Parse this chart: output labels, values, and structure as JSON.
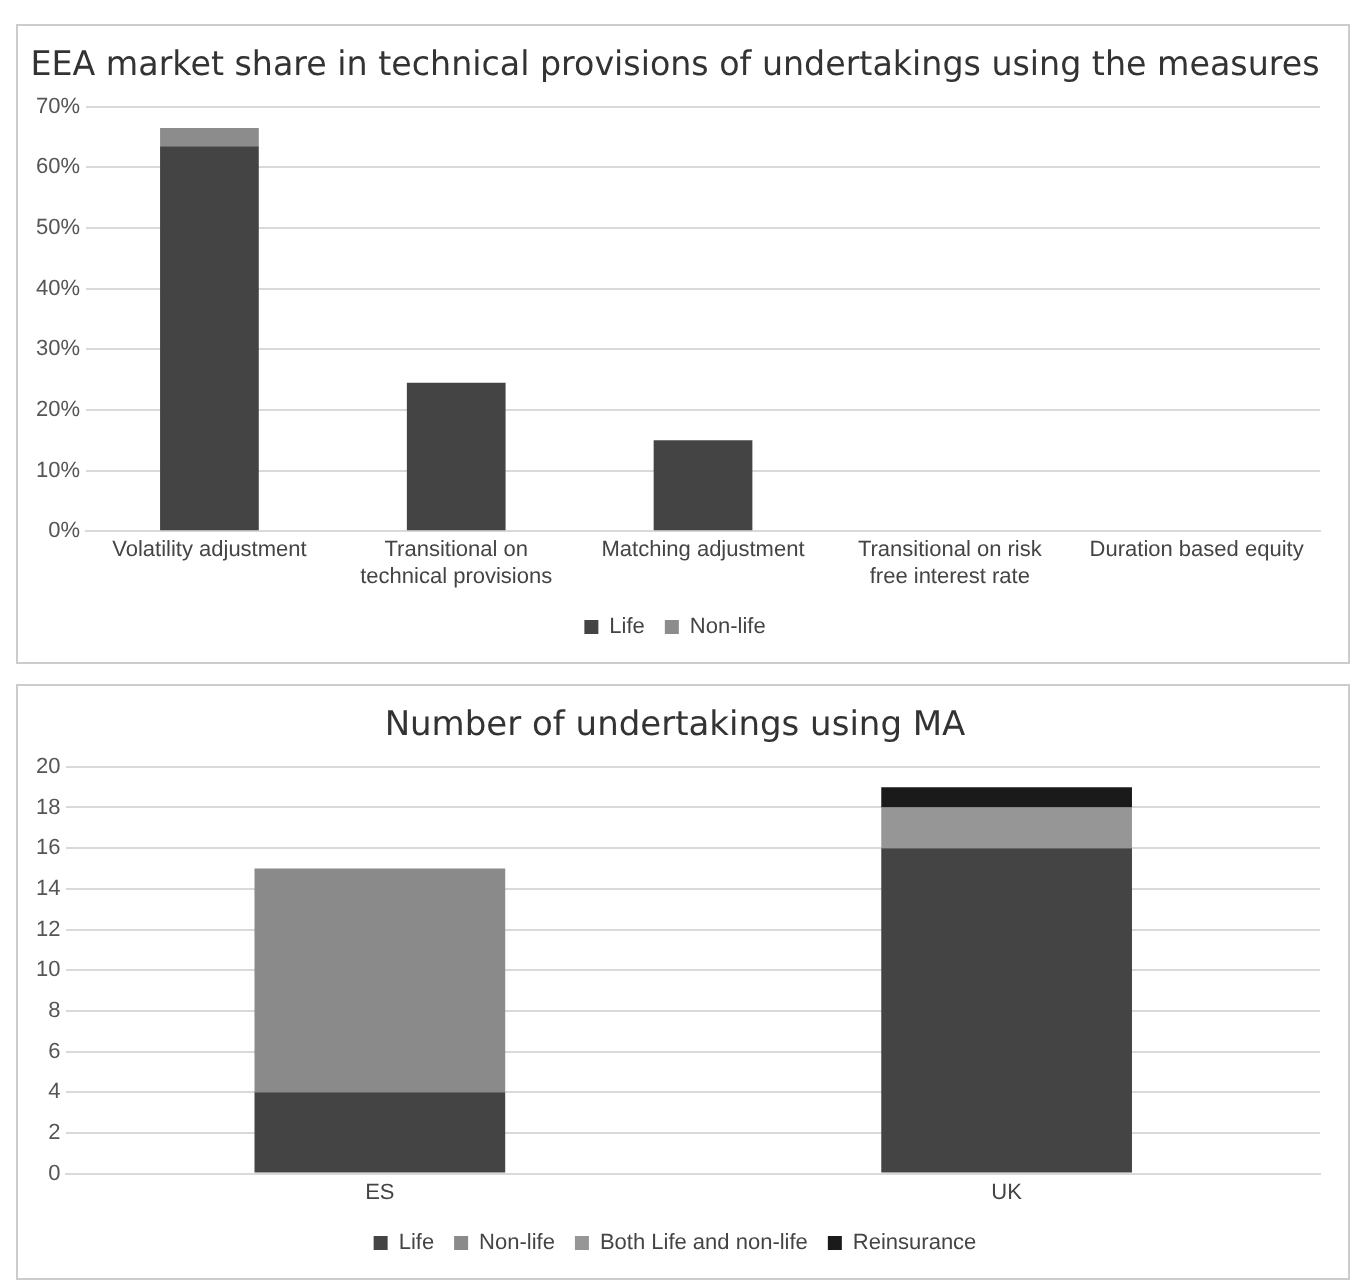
{
  "chart_data": [
    {
      "type": "bar",
      "title": "EEA market share in technical provisions of undertakings using the measures",
      "categories": [
        "Volatility adjustment",
        "Transitional on technical provisions",
        "Matching adjustment",
        "Transitional on risk free interest rate",
        "Duration based equity"
      ],
      "stacked": true,
      "series": [
        {
          "name": "Life",
          "color": "#444444",
          "values": [
            63.5,
            24.5,
            15,
            0,
            0
          ]
        },
        {
          "name": "Non-life",
          "color": "#8c8c8c",
          "values": [
            3,
            0,
            0,
            0,
            0
          ]
        }
      ],
      "ylim": [
        0,
        70
      ],
      "yticks": [
        {
          "value": 0,
          "label": "0%"
        },
        {
          "value": 10,
          "label": "10%"
        },
        {
          "value": 20,
          "label": "20%"
        },
        {
          "value": 30,
          "label": "30%"
        },
        {
          "value": 40,
          "label": "40%"
        },
        {
          "value": 50,
          "label": "50%"
        },
        {
          "value": 60,
          "label": "60%"
        },
        {
          "value": 70,
          "label": "70%"
        }
      ],
      "grid": "y",
      "legend": "bottom"
    },
    {
      "type": "bar",
      "title": "Number of undertakings using MA",
      "categories": [
        "ES",
        "UK"
      ],
      "stacked": true,
      "series": [
        {
          "name": "Life",
          "color": "#444444",
          "values": [
            4,
            16
          ]
        },
        {
          "name": "Non-life",
          "color": "#8a8a8a",
          "values": [
            11,
            0
          ]
        },
        {
          "name": "Both Life and non-life",
          "color": "#969696",
          "values": [
            0,
            2
          ]
        },
        {
          "name": "Reinsurance",
          "color": "#1a1a1a",
          "values": [
            0,
            1
          ]
        }
      ],
      "ylim": [
        0,
        20
      ],
      "yticks": [
        0,
        2,
        4,
        6,
        8,
        10,
        12,
        14,
        16,
        18,
        20
      ],
      "grid": "y",
      "legend": "bottom"
    }
  ]
}
